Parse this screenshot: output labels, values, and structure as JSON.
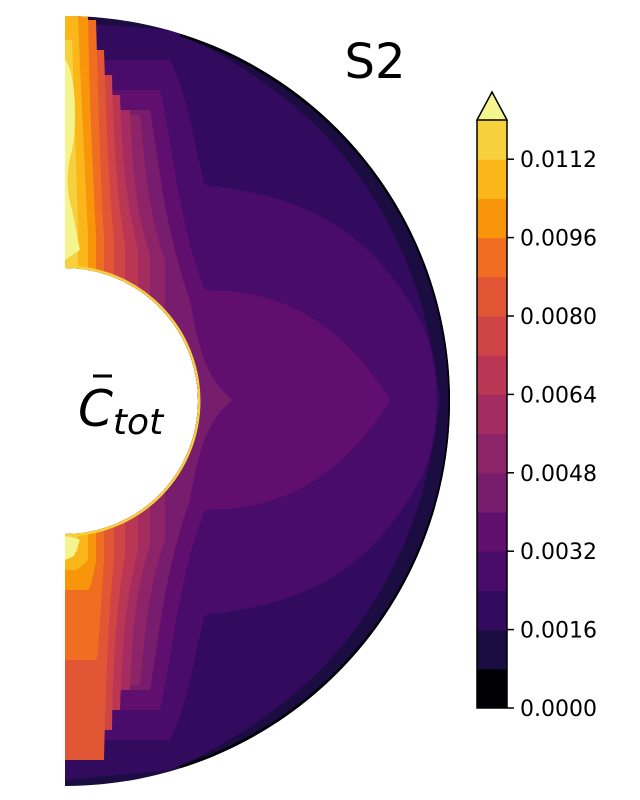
{
  "chart_data": {
    "type": "heatmap",
    "title": "S2",
    "quantity_label": {
      "base": "C",
      "subscript": "tot"
    },
    "colormap": "inferno",
    "colorbar": {
      "levels": [
        0.0,
        0.0008,
        0.0016,
        0.0024,
        0.0032,
        0.004,
        0.0048,
        0.0056,
        0.0064,
        0.0072,
        0.008,
        0.0088,
        0.0096,
        0.0104,
        0.0112,
        0.012
      ],
      "ticks": [
        "0.0000",
        "0.0016",
        "0.0032",
        "0.0048",
        "0.0064",
        "0.0080",
        "0.0096",
        "0.0112"
      ],
      "extend": "max",
      "colors": [
        "#000004",
        "#1b0c41",
        "#320a5e",
        "#4a0c6b",
        "#610f6e",
        "#781c6d",
        "#8e2468",
        "#a52c60",
        "#ba3655",
        "#cf4446",
        "#e15635",
        "#ef6e21",
        "#f9950a",
        "#fbb61a",
        "#f7d13d",
        "#f5f590"
      ],
      "placement": "right"
    },
    "domain": "half-annulus (meridional cross-section)",
    "colors": {
      "low": "#000004",
      "mid": "#781c6d",
      "high": "#f5f590"
    }
  }
}
